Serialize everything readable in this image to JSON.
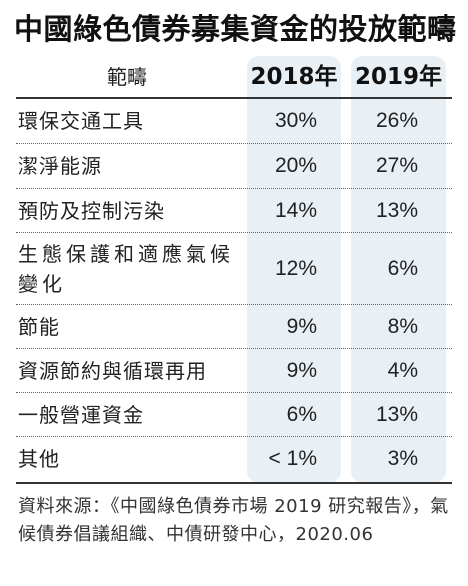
{
  "title": "中國綠色債券募集資金的投放範疇",
  "table": {
    "header": {
      "category": "範疇",
      "year1": "2018年",
      "year2": "2019年"
    },
    "rows": [
      {
        "label": "環保交通工具",
        "y2018": "30%",
        "y2019": "26%"
      },
      {
        "label": "潔淨能源",
        "y2018": "20%",
        "y2019": "27%"
      },
      {
        "label": "預防及控制污染",
        "y2018": "14%",
        "y2019": "13%"
      },
      {
        "label": "生態保護和適應氣候變化",
        "y2018": "12%",
        "y2019": "6%"
      },
      {
        "label": "節能",
        "y2018": "9%",
        "y2019": "8%"
      },
      {
        "label": "資源節約與循環再用",
        "y2018": "9%",
        "y2019": "4%"
      },
      {
        "label": "一般營運資金",
        "y2018": "6%",
        "y2019": "13%"
      },
      {
        "label": "其他",
        "y2018": "< 1%",
        "y2019": "3%"
      }
    ]
  },
  "source": "資料來源：《中國綠色債券市場 2019 研究報告》，氣候債券倡議組織、中債研發中心，2020.06"
}
